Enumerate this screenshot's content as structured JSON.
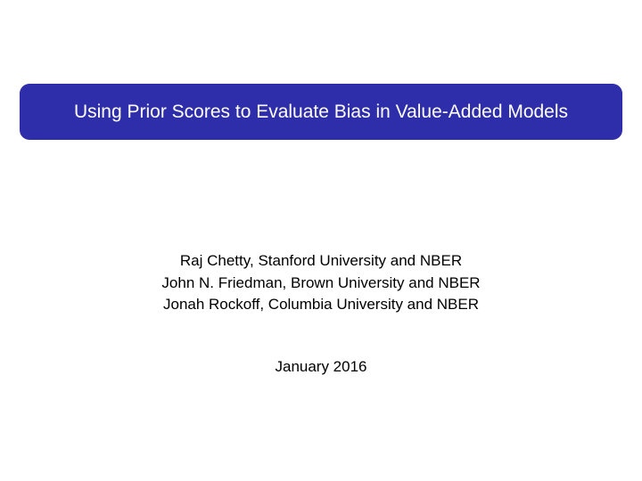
{
  "title": {
    "text": "Using Prior Scores to Evaluate Bias in Value-Added Models",
    "background_color": "#2e2eaa",
    "text_color": "#ffffff",
    "font_size": 21,
    "border_radius": 11
  },
  "authors": [
    "Raj Chetty, Stanford University and NBER",
    "John N. Friedman, Brown University and NBER",
    "Jonah Rockoff, Columbia University and NBER"
  ],
  "date": "January 2016",
  "body_text_color": "#000000",
  "body_font_size": 17,
  "background_color": "#ffffff"
}
